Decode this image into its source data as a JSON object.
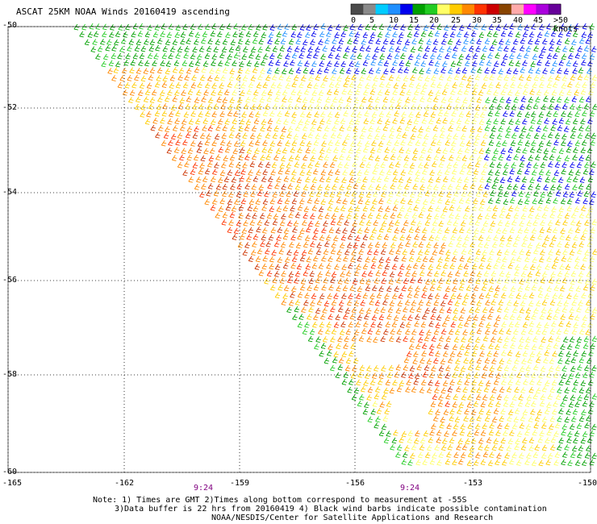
{
  "title": "ASCAT 25KM NOAA Winds 20160419 ascending",
  "legend": {
    "labels": [
      "0",
      "5",
      "10",
      "15",
      "20",
      "25",
      "30",
      "35",
      "40",
      "45",
      ">50 knots"
    ],
    "colors": [
      "#4a4a4a",
      "#8a8a8a",
      "#00ccff",
      "#1f8fff",
      "#0000ee",
      "#00a000",
      "#22cc22",
      "#ffff66",
      "#ffcc00",
      "#ff8800",
      "#ff3300",
      "#cc0000",
      "#884400",
      "#ffaaaa",
      "#ff00ff",
      "#aa00dd",
      "#660099"
    ]
  },
  "axes": {
    "lat_labels": [
      "-50",
      "-52",
      "-54",
      "-56",
      "-58",
      "-60"
    ],
    "lon_labels": [
      "-165",
      "-162",
      "-159",
      "-156",
      "-153",
      "-150"
    ]
  },
  "times": [
    "9:24",
    "9:24"
  ],
  "notes": [
    "Note: 1) Times are GMT 2)Times along bottom correspond to measurement at -55S",
    "3)Data buffer is 22 hrs from 20160419 4) Black wind barbs indicate possible contamination",
    "NOAA/NESDIS/Center for Satellite Applications and Research"
  ]
}
